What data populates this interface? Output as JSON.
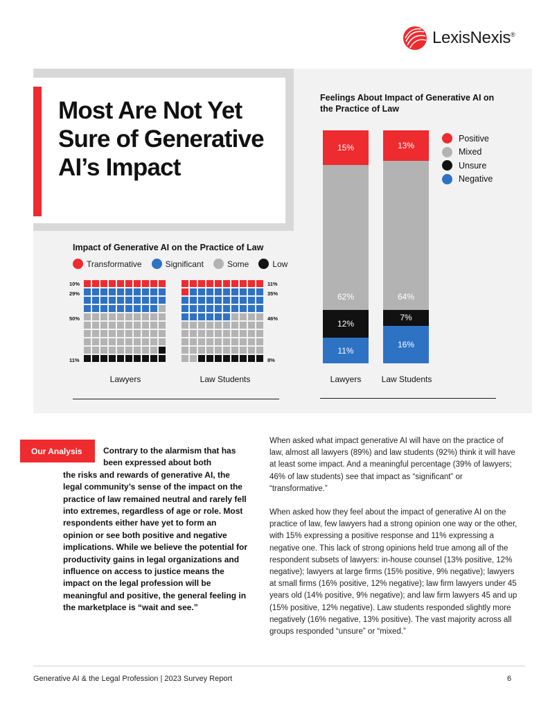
{
  "brand": {
    "logo_icon": "lexisnexis-logo",
    "name": "LexisNexis",
    "trademark": "®",
    "color": "#ee2b2e"
  },
  "title": "Most Are Not Yet Sure of Generative AI’s Impact",
  "waffle_chart": {
    "title": "Impact of Generative AI on the Practice of Law",
    "legend": [
      {
        "label": "Transformative",
        "color": "#ee2b2e"
      },
      {
        "label": "Significant",
        "color": "#2e72c4"
      },
      {
        "label": "Some",
        "color": "#b3b3b3"
      },
      {
        "label": "Low",
        "color": "#111111"
      }
    ],
    "groups": [
      {
        "name": "Lawyers",
        "transformative": 10,
        "significant": 29,
        "some": 50,
        "low": 11
      },
      {
        "name": "Law Students",
        "transformative": 11,
        "significant": 35,
        "some": 46,
        "low": 8
      }
    ],
    "left_labels": [
      "10%",
      "29%",
      "50%",
      "11%"
    ],
    "right_labels": [
      "11%",
      "35%",
      "46%",
      "8%"
    ]
  },
  "chart_data": {
    "type": "bar",
    "stacked": true,
    "title": "Feelings About Impact of Generative AI on the Practice of Law",
    "categories": [
      "Lawyers",
      "Law Students"
    ],
    "series": [
      {
        "name": "Positive",
        "color": "#ee2b2e",
        "values": [
          15,
          13
        ]
      },
      {
        "name": "Mixed",
        "color": "#b3b3b3",
        "values": [
          62,
          64
        ]
      },
      {
        "name": "Unsure",
        "color": "#111111",
        "values": [
          12,
          7
        ]
      },
      {
        "name": "Negative",
        "color": "#2e72c4",
        "values": [
          11,
          16
        ]
      }
    ],
    "value_labels": [
      [
        "15%",
        "13%"
      ],
      [
        "62%",
        "64%"
      ],
      [
        "12%",
        "7%"
      ],
      [
        "11%",
        "16%"
      ]
    ],
    "ylim": [
      0,
      100
    ],
    "legend_position": "top-right"
  },
  "analysis": {
    "tag": "Our Analysis",
    "lead": "Contrary to the alarmism that has been expressed about both",
    "text": "the risks and rewards of generative AI, the legal community’s sense of the impact on the practice of law remained neutral and rarely fell into extremes, regardless of age or role. Most respondents either have yet to form an opinion or see both positive and negative implications. While we believe the potential for productivity gains in legal organizations and influence on access to justice means the impact on the legal profession will be meaningful and positive, the general feeling in the marketplace is “wait and see.”"
  },
  "body": {
    "paragraph_1": "When asked what impact generative AI will have on the practice of law, almost all lawyers (89%) and law students (92%) think it will have at least some impact. And a meaningful percentage (39% of lawyers; 46% of law students) see that impact as “significant” or “transformative.”",
    "paragraph_2": "When asked how they feel about the impact of generative AI on the practice of law, few lawyers had a strong opinion one way or the other, with 15% expressing a positive response and 11% expressing a negative one. This lack of strong opinions held true among all of the respondent subsets of lawyers: in-house counsel (13% positive, 12% negative); lawyers at large firms (15% positive, 9% negative); lawyers at small firms (16% positive, 12% negative); law firm lawyers under 45 years old (14% positive, 9% negative); and law firm lawyers 45 and up (15% positive, 12% negative). Law students responded slightly more negatively  (16% negative, 13% positive). The vast majority across all groups responded “unsure” or “mixed.”"
  },
  "footer": {
    "report_title": "Generative AI & the Legal Profession | 2023 Survey Report",
    "page_number": "6"
  }
}
